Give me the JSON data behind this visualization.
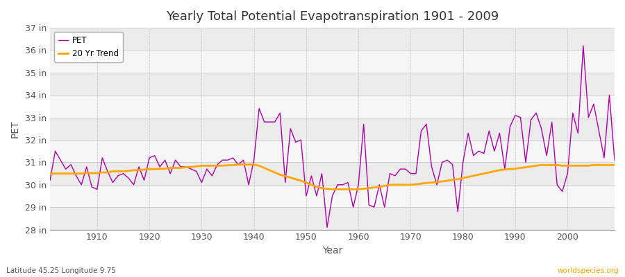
{
  "title": "Yearly Total Potential Evapotranspiration 1901 - 2009",
  "xlabel": "Year",
  "ylabel": "PET",
  "subtitle_left": "Latitude 45.25 Longitude 9.75",
  "subtitle_right": "worldspecies.org",
  "pet_color": "#aa00aa",
  "trend_color": "#FFA500",
  "background_color": "#f0f0f0",
  "band_color_light": "#f5f5f5",
  "band_color_dark": "#e8e8e8",
  "ylim_min": 28,
  "ylim_max": 37,
  "ytick_labels": [
    "28 in",
    "29 in",
    "30 in",
    "31 in",
    "32 in",
    "33 in",
    "34 in",
    "35 in",
    "36 in",
    "37 in"
  ],
  "ytick_values": [
    28,
    29,
    30,
    31,
    32,
    33,
    34,
    35,
    36,
    37
  ],
  "years": [
    1901,
    1902,
    1903,
    1904,
    1905,
    1906,
    1907,
    1908,
    1909,
    1910,
    1911,
    1912,
    1913,
    1914,
    1915,
    1916,
    1917,
    1918,
    1919,
    1920,
    1921,
    1922,
    1923,
    1924,
    1925,
    1926,
    1927,
    1928,
    1929,
    1930,
    1931,
    1932,
    1933,
    1934,
    1935,
    1936,
    1937,
    1938,
    1939,
    1940,
    1941,
    1942,
    1943,
    1944,
    1945,
    1946,
    1947,
    1948,
    1949,
    1950,
    1951,
    1952,
    1953,
    1954,
    1955,
    1956,
    1957,
    1958,
    1959,
    1960,
    1961,
    1962,
    1963,
    1964,
    1965,
    1966,
    1967,
    1968,
    1969,
    1970,
    1971,
    1972,
    1973,
    1974,
    1975,
    1976,
    1977,
    1978,
    1979,
    1980,
    1981,
    1982,
    1983,
    1984,
    1985,
    1986,
    1987,
    1988,
    1989,
    1990,
    1991,
    1992,
    1993,
    1994,
    1995,
    1996,
    1997,
    1998,
    1999,
    2000,
    2001,
    2002,
    2003,
    2004,
    2005,
    2006,
    2007,
    2008,
    2009
  ],
  "pet_values": [
    30.2,
    31.5,
    31.1,
    30.7,
    30.9,
    30.4,
    30.0,
    30.8,
    29.9,
    29.8,
    31.2,
    30.6,
    30.1,
    30.4,
    30.5,
    30.3,
    30.0,
    30.8,
    30.2,
    31.2,
    31.3,
    30.8,
    31.1,
    30.5,
    31.1,
    30.8,
    30.8,
    30.7,
    30.6,
    30.1,
    30.7,
    30.4,
    30.9,
    31.1,
    31.1,
    31.2,
    30.9,
    31.1,
    30.0,
    31.1,
    33.4,
    32.8,
    32.8,
    32.8,
    33.2,
    30.1,
    32.5,
    31.9,
    32.0,
    29.5,
    30.4,
    29.5,
    30.5,
    28.1,
    29.5,
    30.0,
    30.0,
    30.1,
    29.0,
    30.0,
    32.7,
    29.1,
    29.0,
    30.0,
    29.0,
    30.5,
    30.4,
    30.7,
    30.7,
    30.5,
    30.5,
    32.4,
    32.7,
    30.8,
    30.0,
    31.0,
    31.1,
    30.9,
    28.8,
    31.0,
    32.3,
    31.3,
    31.5,
    31.4,
    32.4,
    31.5,
    32.3,
    30.7,
    32.6,
    33.1,
    33.0,
    31.0,
    32.9,
    33.2,
    32.5,
    31.3,
    32.8,
    30.0,
    29.7,
    30.5,
    33.2,
    32.3,
    36.2,
    33.0,
    33.6,
    32.4,
    31.2,
    34.0,
    31.1
  ],
  "trend_values": [
    30.5,
    30.5,
    30.5,
    30.5,
    30.5,
    30.5,
    30.5,
    30.52,
    30.52,
    30.52,
    30.55,
    30.55,
    30.6,
    30.6,
    30.6,
    30.62,
    30.65,
    30.65,
    30.68,
    30.7,
    30.7,
    30.72,
    30.72,
    30.75,
    30.75,
    30.75,
    30.78,
    30.8,
    30.82,
    30.85,
    30.85,
    30.85,
    30.85,
    30.85,
    30.87,
    30.87,
    30.9,
    30.9,
    30.9,
    30.9,
    30.85,
    30.75,
    30.65,
    30.55,
    30.45,
    30.38,
    30.32,
    30.25,
    30.18,
    30.1,
    30.0,
    29.9,
    29.85,
    29.82,
    29.8,
    29.8,
    29.8,
    29.8,
    29.8,
    29.8,
    29.82,
    29.85,
    29.88,
    29.9,
    29.95,
    30.0,
    30.0,
    30.0,
    30.0,
    30.0,
    30.02,
    30.05,
    30.08,
    30.1,
    30.12,
    30.15,
    30.18,
    30.22,
    30.25,
    30.3,
    30.35,
    30.4,
    30.45,
    30.5,
    30.55,
    30.6,
    30.65,
    30.68,
    30.7,
    30.72,
    30.75,
    30.78,
    30.82,
    30.85,
    30.88,
    30.88,
    30.88,
    30.88,
    30.85,
    30.85,
    30.85,
    30.85,
    30.85,
    30.85,
    30.88,
    30.88,
    30.88,
    30.88,
    30.88
  ]
}
